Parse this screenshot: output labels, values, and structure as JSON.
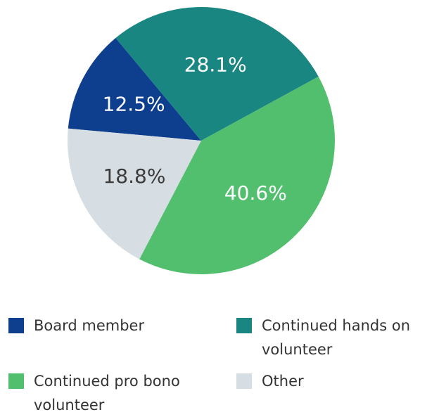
{
  "chart_data": {
    "type": "pie",
    "categories": [
      "Board member",
      "Continued hands on volunteer",
      "Continued pro bono volunteer",
      "Other"
    ],
    "values": [
      12.5,
      28.1,
      40.6,
      18.8
    ],
    "value_labels": [
      "12.5%",
      "28.1%",
      "40.6%",
      "18.8%"
    ],
    "colors": [
      "#0e3f8f",
      "#1a8682",
      "#52bf6e",
      "#d6dde3"
    ],
    "label_colors": [
      "#ffffff",
      "#ffffff",
      "#ffffff",
      "#3a3a3a"
    ]
  }
}
